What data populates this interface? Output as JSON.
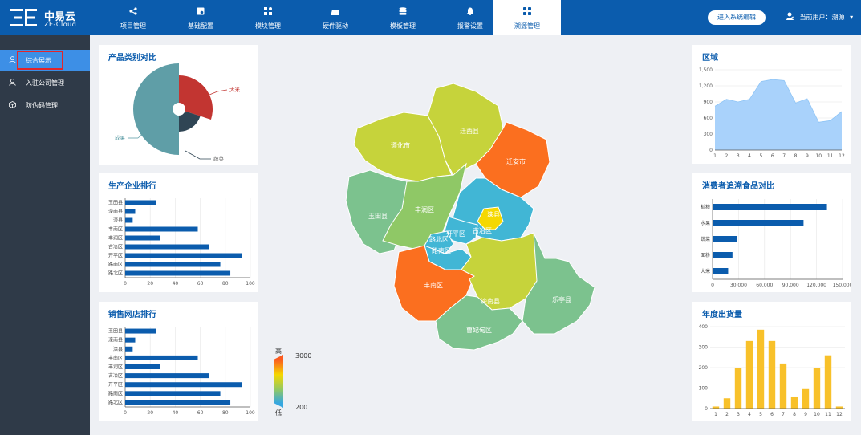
{
  "brand": {
    "name_cn": "中易云",
    "name_en": "ZE-Cloud"
  },
  "nav": [
    {
      "label": "项目管理",
      "icon": "share-icon"
    },
    {
      "label": "基础配置",
      "icon": "config-icon"
    },
    {
      "label": "模块管理",
      "icon": "module-icon"
    },
    {
      "label": "硬件驱动",
      "icon": "hardware-icon"
    },
    {
      "label": "模板管理",
      "icon": "database-icon"
    },
    {
      "label": "报警设置",
      "icon": "bell-icon"
    },
    {
      "label": "溯源管理",
      "icon": "grid-icon",
      "active": true
    }
  ],
  "header": {
    "enter_button": "进入系统编辑",
    "user_label": "当前用户：溯源"
  },
  "sidebar": [
    {
      "label": "综合展示",
      "icon": "user-icon",
      "active": true
    },
    {
      "label": "入驻公司管理",
      "icon": "user-icon"
    },
    {
      "label": "防伪码管理",
      "icon": "cube-icon"
    }
  ],
  "cards": {
    "category": {
      "title": "产品类别对比",
      "labels": [
        "成果",
        "大米",
        "蔬菜"
      ]
    },
    "producers": {
      "title": "生产企业排行"
    },
    "stores": {
      "title": "销售网店排行"
    },
    "region": {
      "title": "区域"
    },
    "consumer": {
      "title": "消费者追溯食品对比"
    },
    "shipments": {
      "title": "年度出货量"
    }
  },
  "map": {
    "regions": [
      "遵化市",
      "迁西县",
      "迁安市",
      "玉田县",
      "丰润区",
      "滦县",
      "开平区",
      "古冶区",
      "路北区",
      "路南区",
      "丰南区",
      "滦南县",
      "乐亭县",
      "曹妃甸区"
    ],
    "legend": {
      "high_label": "高",
      "low_label": "低",
      "max": "3000",
      "min": "200"
    }
  },
  "colors": {
    "primary": "#0b5cad",
    "sidebar": "#2f3a48",
    "active": "#3d8fe6",
    "bar": "#0b5cad",
    "area": "#a9d2fb",
    "gold": "#f8c12a"
  },
  "chart_data": [
    {
      "type": "pie",
      "title": "产品类别对比",
      "categories": [
        "成果",
        "大米",
        "蔬菜"
      ],
      "values": [
        50,
        30,
        20
      ]
    },
    {
      "type": "bar",
      "orientation": "horizontal",
      "title": "生产企业排行",
      "categories": [
        "玉田县",
        "滦南县",
        "滦县",
        "丰南区",
        "丰润区",
        "古冶区",
        "开平区",
        "路南区",
        "路北区"
      ],
      "values": [
        25,
        8,
        6,
        58,
        28,
        67,
        93,
        76,
        84
      ],
      "xlim": [
        0,
        100
      ],
      "xticks": [
        "0",
        "20",
        "40",
        "60",
        "80",
        "100"
      ]
    },
    {
      "type": "bar",
      "orientation": "horizontal",
      "title": "销售网店排行",
      "categories": [
        "玉田县",
        "滦南县",
        "滦县",
        "丰南区",
        "丰润区",
        "古冶区",
        "开平区",
        "路南区",
        "路北区"
      ],
      "values": [
        25,
        8,
        6,
        58,
        28,
        67,
        93,
        76,
        84
      ],
      "xlim": [
        0,
        100
      ],
      "xticks": [
        "0",
        "20",
        "40",
        "60",
        "80",
        "100"
      ]
    },
    {
      "type": "area",
      "title": "区域",
      "x": [
        "1",
        "2",
        "3",
        "4",
        "5",
        "6",
        "7",
        "8",
        "9",
        "10",
        "11",
        "12"
      ],
      "values": [
        820,
        950,
        900,
        950,
        1280,
        1320,
        1300,
        880,
        960,
        520,
        550,
        720
      ],
      "ylim": [
        0,
        1500
      ],
      "yticks": [
        "0",
        "300",
        "600",
        "900",
        "1,200",
        "1,500"
      ]
    },
    {
      "type": "bar",
      "orientation": "horizontal",
      "title": "消费者追溯食品对比",
      "categories": [
        "稻粮",
        "水果",
        "蔬菜",
        "面粉",
        "大米"
      ],
      "values": [
        132000,
        105000,
        28000,
        23000,
        18000
      ],
      "xlim": [
        0,
        150000
      ],
      "xticks": [
        "0",
        "30,000",
        "60,000",
        "90,000",
        "120,000",
        "150,000"
      ]
    },
    {
      "type": "bar",
      "title": "年度出货量",
      "categories": [
        "1",
        "2",
        "3",
        "4",
        "5",
        "6",
        "7",
        "8",
        "9",
        "10",
        "11",
        "12"
      ],
      "values": [
        10,
        50,
        200,
        330,
        385,
        330,
        220,
        55,
        95,
        200,
        260,
        10
      ],
      "ylim": [
        0,
        400
      ],
      "yticks": [
        "0",
        "100",
        "200",
        "300",
        "400"
      ]
    }
  ]
}
